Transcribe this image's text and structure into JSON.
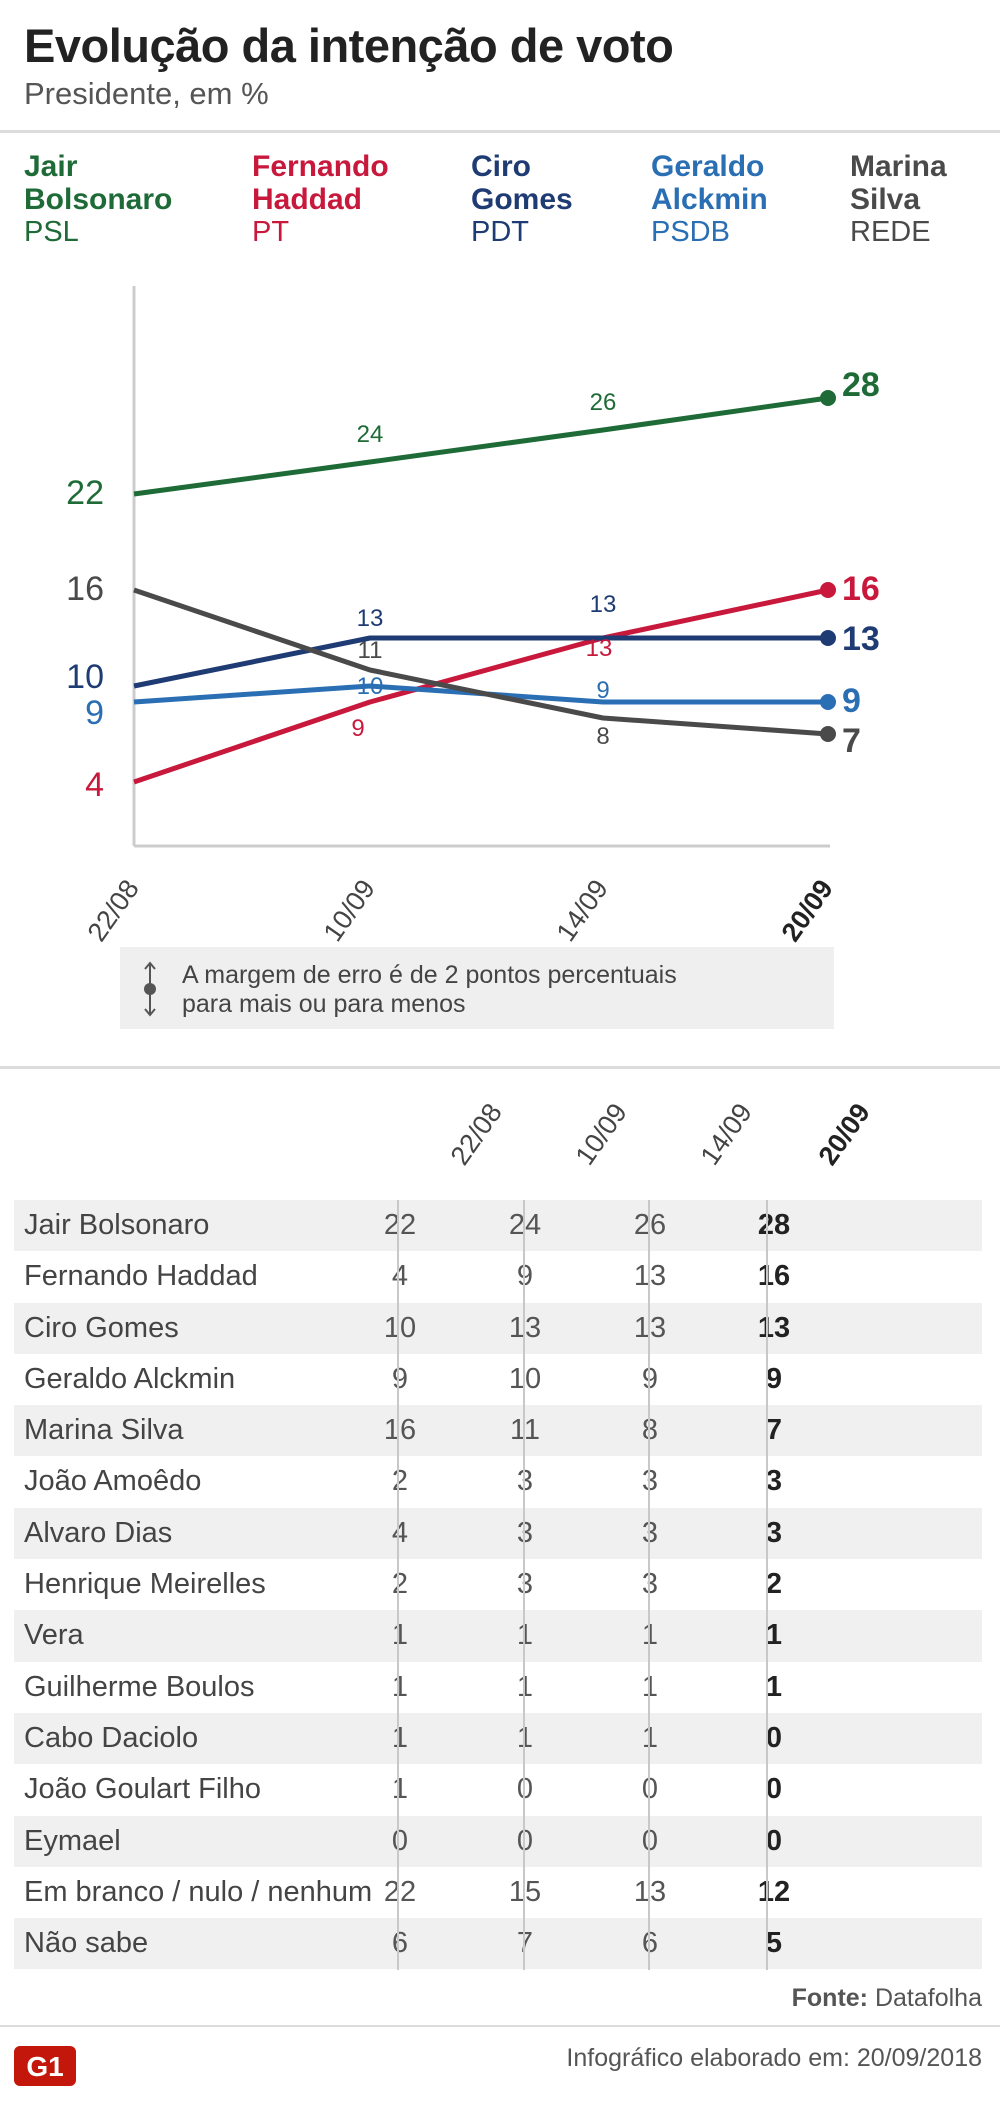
{
  "header": {
    "title": "Evolução da intenção de voto",
    "subtitle": "Presidente, em %"
  },
  "legend": [
    {
      "name_line1": "Jair",
      "name_line2": "Bolsonaro",
      "party": "PSL",
      "color": "#1e6b37"
    },
    {
      "name_line1": "Fernando",
      "name_line2": "Haddad",
      "party": "PT",
      "color": "#c8193c"
    },
    {
      "name_line1": "Ciro",
      "name_line2": "Gomes",
      "party": "PDT",
      "color": "#1f3b73"
    },
    {
      "name_line1": "Geraldo",
      "name_line2": "Alckmin",
      "party": "PSDB",
      "color": "#2a6eb4"
    },
    {
      "name_line1": "Marina",
      "name_line2": "Silva",
      "party": "REDE",
      "color": "#4a4a4a"
    }
  ],
  "chart_data": {
    "type": "line",
    "title": "Evolução da intenção de voto",
    "subtitle": "Presidente, em %",
    "x": [
      "22/08",
      "10/09",
      "14/09",
      "20/09"
    ],
    "ylim": [
      0,
      35
    ],
    "grid": false,
    "series": [
      {
        "name": "Jair Bolsonaro",
        "color": "#1e6b37",
        "values": [
          22,
          24,
          26,
          28
        ]
      },
      {
        "name": "Fernando Haddad",
        "color": "#c8193c",
        "values": [
          4,
          9,
          13,
          16
        ]
      },
      {
        "name": "Ciro Gomes",
        "color": "#1f3b73",
        "values": [
          10,
          13,
          13,
          13
        ]
      },
      {
        "name": "Geraldo Alckmin",
        "color": "#2a6eb4",
        "values": [
          9,
          10,
          9,
          9
        ]
      },
      {
        "name": "Marina Silva",
        "color": "#4a4a4a",
        "values": [
          16,
          11,
          8,
          7
        ]
      }
    ]
  },
  "note": {
    "line1": "A margem de erro é de 2 pontos percentuais",
    "line2": "para mais ou para menos"
  },
  "table": {
    "columns": [
      "22/08",
      "10/09",
      "14/09",
      "20/09"
    ],
    "rows": [
      {
        "name": "Jair Bolsonaro",
        "values": [
          "22",
          "24",
          "26",
          "28"
        ]
      },
      {
        "name": "Fernando Haddad",
        "values": [
          "4",
          "9",
          "13",
          "16"
        ]
      },
      {
        "name": "Ciro Gomes",
        "values": [
          "10",
          "13",
          "13",
          "13"
        ]
      },
      {
        "name": "Geraldo Alckmin",
        "values": [
          "9",
          "10",
          "9",
          "9"
        ]
      },
      {
        "name": "Marina Silva",
        "values": [
          "16",
          "11",
          "8",
          "7"
        ]
      },
      {
        "name": "João Amoêdo",
        "values": [
          "2",
          "3",
          "3",
          "3"
        ]
      },
      {
        "name": "Alvaro Dias",
        "values": [
          "4",
          "3",
          "3",
          "3"
        ]
      },
      {
        "name": "Henrique Meirelles",
        "values": [
          "2",
          "3",
          "3",
          "2"
        ]
      },
      {
        "name": "Vera",
        "values": [
          "1",
          "1",
          "1",
          "1"
        ]
      },
      {
        "name": "Guilherme Boulos",
        "values": [
          "1",
          "1",
          "1",
          "1"
        ]
      },
      {
        "name": "Cabo Daciolo",
        "values": [
          "1",
          "1",
          "1",
          "0"
        ]
      },
      {
        "name": "João Goulart Filho",
        "values": [
          "1",
          "0",
          "0",
          "0"
        ]
      },
      {
        "name": "Eymael",
        "values": [
          "0",
          "0",
          "0",
          "0"
        ]
      },
      {
        "name": "Em branco / nulo / nenhum",
        "values": [
          "22",
          "15",
          "13",
          "12"
        ]
      },
      {
        "name": "Não sabe",
        "values": [
          "6",
          "7",
          "6",
          "5"
        ]
      }
    ]
  },
  "source": {
    "label": "Fonte:",
    "value": "Datafolha"
  },
  "footer": {
    "logo": "G1",
    "text": "Infográfico elaborado em: 20/09/2018",
    "logo_color": "#c4170c"
  }
}
